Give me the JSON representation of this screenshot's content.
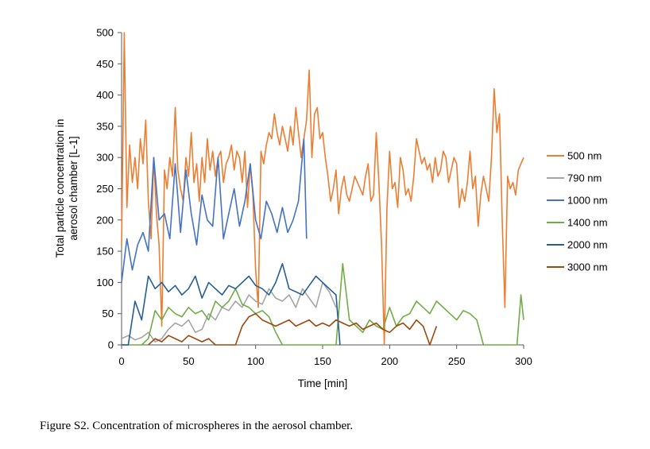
{
  "caption": "Figure S2. Concentration of microspheres in the aerosol chamber.",
  "chart_data": {
    "type": "line",
    "title": "",
    "xlabel": "Time [min]",
    "ylabel": "Total particle concentration in aerosol chamber [L-1]",
    "xlim": [
      0,
      300
    ],
    "ylim": [
      0,
      500
    ],
    "xticks": [
      0,
      50,
      100,
      150,
      200,
      250,
      300
    ],
    "yticks": [
      0,
      50,
      100,
      150,
      200,
      250,
      300,
      350,
      400,
      450,
      500
    ],
    "grid": false,
    "legend_position": "right",
    "series": [
      {
        "name": "500 nm",
        "color": "#ED7D31",
        "x": [
          0,
          2,
          4,
          6,
          8,
          10,
          12,
          14,
          16,
          18,
          20,
          22,
          24,
          26,
          28,
          30,
          32,
          34,
          36,
          38,
          40,
          42,
          44,
          46,
          48,
          50,
          52,
          54,
          56,
          58,
          60,
          62,
          64,
          66,
          68,
          70,
          72,
          74,
          76,
          78,
          80,
          82,
          84,
          86,
          88,
          90,
          92,
          94,
          96,
          98,
          100,
          102,
          104,
          106,
          108,
          110,
          112,
          114,
          116,
          118,
          120,
          122,
          124,
          126,
          128,
          130,
          132,
          134,
          136,
          138,
          140,
          142,
          144,
          146,
          148,
          150,
          152,
          154,
          156,
          158,
          160,
          162,
          164,
          166,
          168,
          170,
          172,
          174,
          176,
          178,
          180,
          182,
          184,
          186,
          188,
          190,
          192,
          194,
          196,
          198,
          200,
          202,
          204,
          206,
          208,
          210,
          212,
          214,
          216,
          218,
          220,
          222,
          224,
          226,
          228,
          230,
          232,
          234,
          236,
          238,
          240,
          242,
          244,
          246,
          248,
          250,
          252,
          254,
          256,
          258,
          260,
          262,
          264,
          266,
          268,
          270,
          272,
          274,
          276,
          278,
          280,
          282,
          284,
          286,
          288,
          290,
          292,
          294,
          296,
          298,
          300
        ],
        "values": [
          160,
          500,
          220,
          320,
          260,
          300,
          250,
          330,
          290,
          360,
          230,
          170,
          300,
          210,
          160,
          30,
          280,
          250,
          300,
          270,
          380,
          280,
          250,
          230,
          300,
          270,
          340,
          260,
          290,
          230,
          300,
          260,
          330,
          280,
          310,
          270,
          300,
          310,
          260,
          290,
          300,
          320,
          280,
          310,
          300,
          260,
          310,
          220,
          290,
          240,
          120,
          60,
          310,
          290,
          320,
          340,
          330,
          370,
          340,
          320,
          350,
          330,
          310,
          350,
          320,
          380,
          340,
          300,
          330,
          360,
          440,
          300,
          370,
          380,
          330,
          340,
          300,
          270,
          230,
          250,
          280,
          210,
          250,
          270,
          240,
          230,
          250,
          270,
          260,
          250,
          240,
          270,
          290,
          230,
          240,
          340,
          260,
          160,
          0,
          220,
          310,
          250,
          260,
          220,
          300,
          280,
          240,
          250,
          230,
          270,
          330,
          310,
          290,
          300,
          280,
          290,
          260,
          300,
          270,
          280,
          310,
          300,
          260,
          280,
          300,
          290,
          220,
          250,
          230,
          260,
          310,
          250,
          270,
          190,
          240,
          270,
          250,
          230,
          300,
          410,
          340,
          370,
          200,
          60,
          270,
          250,
          260,
          240,
          280,
          290,
          300
        ]
      },
      {
        "name": "790 nm",
        "color": "#A5A5A5",
        "x": [
          0,
          5,
          10,
          15,
          20,
          25,
          30,
          35,
          40,
          45,
          50,
          55,
          60,
          65,
          70,
          75,
          80,
          85,
          90,
          95,
          100,
          105,
          110,
          115,
          120,
          125,
          130,
          135,
          140,
          145,
          150,
          155,
          160
        ],
        "values": [
          10,
          15,
          8,
          12,
          20,
          5,
          10,
          25,
          35,
          30,
          40,
          20,
          25,
          50,
          40,
          60,
          55,
          70,
          60,
          80,
          70,
          65,
          90,
          75,
          70,
          80,
          60,
          90,
          75,
          60,
          100,
          85,
          60
        ]
      },
      {
        "name": "1000 nm",
        "color": "#4472C4",
        "x": [
          0,
          4,
          8,
          12,
          16,
          20,
          24,
          28,
          32,
          36,
          40,
          44,
          48,
          52,
          56,
          60,
          64,
          68,
          72,
          76,
          80,
          84,
          88,
          92,
          96,
          100,
          104,
          108,
          112,
          116,
          120,
          124,
          128,
          132,
          136,
          138
        ],
        "values": [
          100,
          170,
          120,
          160,
          180,
          150,
          300,
          200,
          210,
          170,
          290,
          180,
          280,
          210,
          160,
          240,
          200,
          190,
          300,
          170,
          210,
          250,
          190,
          230,
          290,
          200,
          170,
          230,
          210,
          180,
          220,
          180,
          200,
          230,
          330,
          170
        ]
      },
      {
        "name": "1400 nm",
        "color": "#70AD47",
        "x": [
          0,
          5,
          10,
          15,
          20,
          25,
          30,
          35,
          40,
          45,
          50,
          55,
          60,
          65,
          70,
          75,
          80,
          85,
          90,
          95,
          100,
          105,
          110,
          115,
          120,
          125,
          130,
          135,
          140,
          145,
          150,
          155,
          160,
          165,
          170,
          175,
          180,
          185,
          190,
          195,
          200,
          205,
          210,
          215,
          220,
          225,
          230,
          235,
          240,
          245,
          250,
          255,
          260,
          265,
          270,
          275,
          280,
          285,
          290,
          295,
          298,
          300
        ],
        "values": [
          0,
          0,
          0,
          0,
          10,
          55,
          40,
          60,
          50,
          45,
          60,
          50,
          55,
          40,
          70,
          60,
          70,
          90,
          65,
          60,
          50,
          55,
          45,
          20,
          0,
          0,
          0,
          0,
          0,
          0,
          0,
          0,
          0,
          130,
          40,
          30,
          20,
          40,
          30,
          25,
          60,
          30,
          45,
          50,
          70,
          60,
          50,
          70,
          60,
          50,
          40,
          55,
          50,
          40,
          0,
          0,
          0,
          0,
          0,
          0,
          80,
          40
        ]
      },
      {
        "name": "2000 nm",
        "color": "#255E91",
        "x": [
          0,
          5,
          10,
          15,
          20,
          25,
          30,
          35,
          40,
          45,
          50,
          55,
          60,
          65,
          70,
          75,
          80,
          85,
          90,
          95,
          100,
          105,
          110,
          115,
          120,
          125,
          130,
          135,
          140,
          145,
          150,
          155,
          160,
          163
        ],
        "values": [
          0,
          0,
          70,
          40,
          110,
          90,
          100,
          85,
          95,
          80,
          90,
          110,
          75,
          100,
          90,
          80,
          95,
          90,
          100,
          110,
          95,
          90,
          80,
          100,
          130,
          90,
          85,
          80,
          95,
          110,
          100,
          90,
          80,
          0
        ]
      },
      {
        "name": "3000 nm",
        "color": "#9E480E",
        "x": [
          20,
          25,
          30,
          35,
          40,
          45,
          50,
          55,
          60,
          65,
          70,
          75,
          80,
          85,
          90,
          95,
          100,
          105,
          110,
          115,
          120,
          125,
          130,
          135,
          140,
          145,
          150,
          155,
          160,
          165,
          170,
          175,
          180,
          185,
          190,
          195,
          200,
          205,
          210,
          215,
          220,
          225,
          230,
          235
        ],
        "values": [
          0,
          10,
          5,
          15,
          10,
          5,
          15,
          10,
          5,
          10,
          0,
          0,
          0,
          0,
          30,
          45,
          50,
          40,
          35,
          30,
          35,
          40,
          30,
          35,
          40,
          30,
          35,
          30,
          40,
          35,
          30,
          35,
          25,
          30,
          35,
          25,
          20,
          30,
          35,
          25,
          40,
          30,
          0,
          30
        ]
      }
    ]
  }
}
